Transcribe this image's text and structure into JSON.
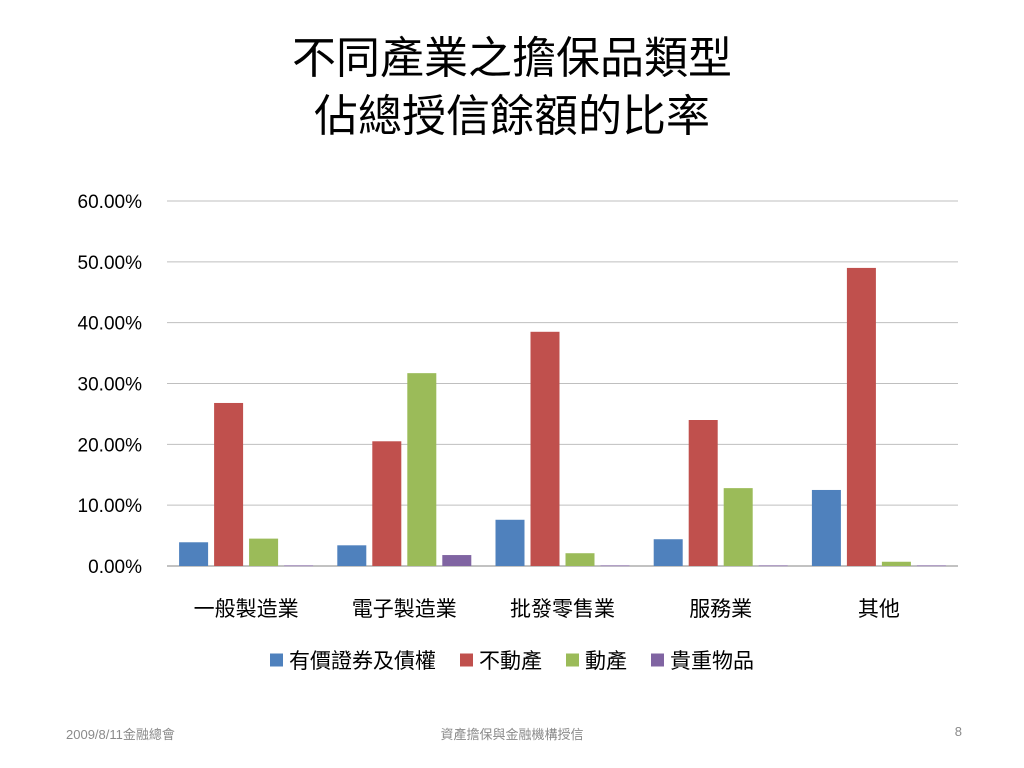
{
  "slide": {
    "title_line1": "不同產業之擔保品類型",
    "title_line2": "佔總授信餘額的比率"
  },
  "footer": {
    "left": "2009/8/11金融總會",
    "center": "資產擔保與金融機構授信",
    "right": "8"
  },
  "chart_data": {
    "type": "bar",
    "title": "",
    "xlabel": "",
    "ylabel": "",
    "categories": [
      "一般製造業",
      "電子製造業",
      "批發零售業",
      "服務業",
      "其他"
    ],
    "series": [
      {
        "name": "有價證券及債權",
        "color": "#4f81bd",
        "values": [
          3.9,
          3.4,
          7.6,
          4.4,
          12.5
        ]
      },
      {
        "name": "不動產",
        "color": "#c0504d",
        "values": [
          26.8,
          20.5,
          38.5,
          24.0,
          49.0
        ]
      },
      {
        "name": "動產",
        "color": "#9bbb59",
        "values": [
          4.5,
          31.7,
          2.1,
          12.8,
          0.7
        ]
      },
      {
        "name": "貴重物品",
        "color": "#8064a2",
        "values": [
          0.1,
          1.8,
          0.1,
          0.1,
          0.1
        ]
      }
    ],
    "ylim": [
      0,
      60
    ],
    "yticks": [
      "0.00%",
      "10.00%",
      "20.00%",
      "30.00%",
      "40.00%",
      "50.00%",
      "60.00%"
    ],
    "grid": true,
    "legend": "bottom"
  }
}
